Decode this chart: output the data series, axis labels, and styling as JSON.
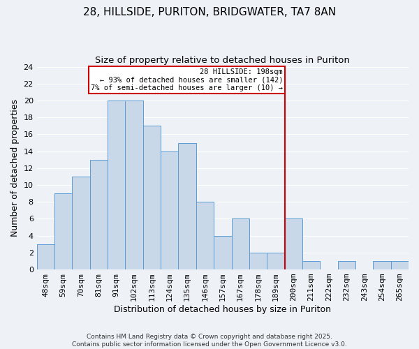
{
  "title": "28, HILLSIDE, PURITON, BRIDGWATER, TA7 8AN",
  "subtitle": "Size of property relative to detached houses in Puriton",
  "xlabel": "Distribution of detached houses by size in Puriton",
  "ylabel": "Number of detached properties",
  "bar_labels": [
    "48sqm",
    "59sqm",
    "70sqm",
    "81sqm",
    "91sqm",
    "102sqm",
    "113sqm",
    "124sqm",
    "135sqm",
    "146sqm",
    "157sqm",
    "167sqm",
    "178sqm",
    "189sqm",
    "200sqm",
    "211sqm",
    "222sqm",
    "232sqm",
    "243sqm",
    "254sqm",
    "265sqm"
  ],
  "bar_values": [
    3,
    9,
    11,
    13,
    20,
    20,
    17,
    14,
    15,
    8,
    4,
    6,
    2,
    2,
    6,
    1,
    0,
    1,
    0,
    1,
    1
  ],
  "bar_color": "#c8d8e8",
  "bar_edge_color": "#5b9bd5",
  "vline_index": 14,
  "vline_color": "#cc0000",
  "ylim": [
    0,
    24
  ],
  "yticks": [
    0,
    2,
    4,
    6,
    8,
    10,
    12,
    14,
    16,
    18,
    20,
    22,
    24
  ],
  "annotation_title": "28 HILLSIDE: 198sqm",
  "annotation_line1": "← 93% of detached houses are smaller (142)",
  "annotation_line2": "7% of semi-detached houses are larger (10) →",
  "annotation_box_color": "#ffffff",
  "annotation_box_edge": "#cc0000",
  "footnote1": "Contains HM Land Registry data © Crown copyright and database right 2025.",
  "footnote2": "Contains public sector information licensed under the Open Government Licence v3.0.",
  "background_color": "#eef2f7",
  "grid_color": "#ffffff",
  "title_fontsize": 11,
  "subtitle_fontsize": 9.5,
  "label_fontsize": 9,
  "tick_fontsize": 8,
  "footnote_fontsize": 6.5,
  "annot_fontsize": 7.5
}
